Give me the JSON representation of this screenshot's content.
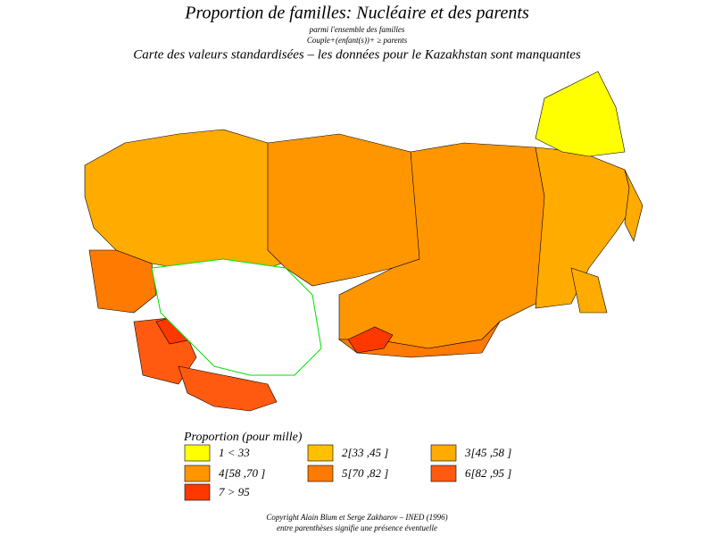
{
  "header": {
    "title": "Proportion de familles: Nucléaire et des parents",
    "subtitle_1": "parmi l'ensemble des familles",
    "subtitle_2": "Couple+(enfant(s))+ ≥ parents",
    "map_note": "Carte des valeurs standardisées – les données pour le Kazakhstan sont manquantes"
  },
  "legend": {
    "title": "Proportion (pour mille)",
    "items": [
      {
        "label": "1 <  33",
        "color": "#ffff00"
      },
      {
        "label": "2[33 ,45 ]",
        "color": "#ffc000"
      },
      {
        "label": "3[45 ,58 ]",
        "color": "#ffab00"
      },
      {
        "label": "4[58 ,70 ]",
        "color": "#ff9600"
      },
      {
        "label": "5[70 ,82 ]",
        "color": "#ff7a00"
      },
      {
        "label": "6[82 ,95 ]",
        "color": "#ff5a10"
      },
      {
        "label": "7 >  95",
        "color": "#ff3800"
      }
    ]
  },
  "footer": {
    "copyright": "Copyright Alain Blum et Serge Zakharov – INED (1996)",
    "note": "entre parenthèses signifie une présence éventuelle"
  }
}
